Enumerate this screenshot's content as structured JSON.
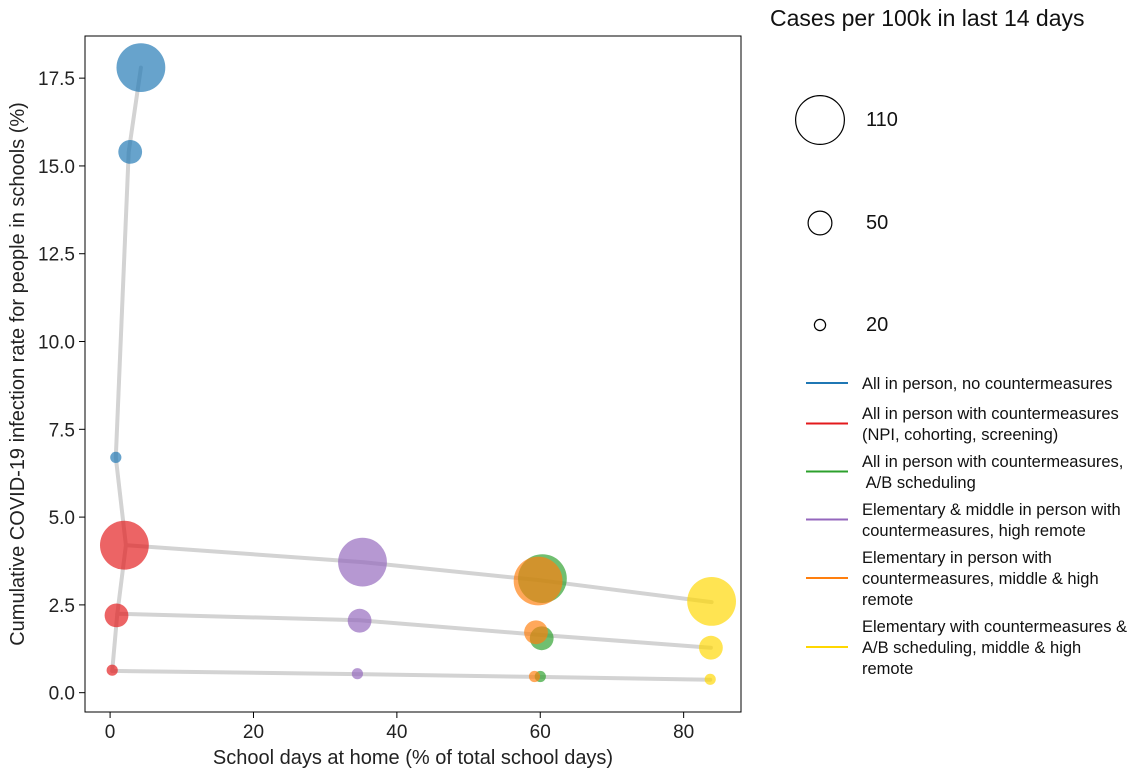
{
  "chart_data": {
    "type": "scatter",
    "xlabel": "School days at home (% of total school days)",
    "ylabel": "Cumulative COVID-19 infection rate for people in schools (%)",
    "xlim": [
      -3.5,
      88
    ],
    "ylim": [
      -0.55,
      18.7
    ],
    "xticks": [
      0,
      20,
      40,
      60,
      80
    ],
    "yticks": [
      0.0,
      2.5,
      5.0,
      7.5,
      10.0,
      12.5,
      15.0,
      17.5
    ],
    "ytick_labels": [
      "0.0",
      "2.5",
      "5.0",
      "7.5",
      "10.0",
      "12.5",
      "15.0",
      "17.5"
    ],
    "grid": false,
    "size_legend": {
      "title": "Cases per 100k in last 14 days",
      "entries": [
        {
          "label": "110",
          "value": 110
        },
        {
          "label": "50",
          "value": 50
        },
        {
          "label": "20",
          "value": 20
        }
      ]
    },
    "trend_lines": [
      {
        "case_rate": 20,
        "points": [
          [
            0.3,
            0.62
          ],
          [
            34.5,
            0.53
          ],
          [
            59.5,
            0.45
          ],
          [
            83.7,
            0.37
          ]
        ]
      },
      {
        "case_rate": 50,
        "points": [
          [
            0.3,
            0.62
          ],
          [
            1.0,
            2.25
          ],
          [
            34.8,
            2.06
          ],
          [
            59.7,
            1.65
          ],
          [
            83.8,
            1.28
          ]
        ]
      },
      {
        "case_rate": 110,
        "points": [
          [
            1.0,
            2.25
          ],
          [
            2.2,
            4.2
          ],
          [
            35.2,
            3.72
          ],
          [
            60.0,
            3.2
          ],
          [
            83.9,
            2.58
          ]
        ]
      },
      {
        "series": "All in person, no countermeasures",
        "points": [
          [
            2.2,
            4.2
          ],
          [
            0.8,
            6.7
          ],
          [
            2.6,
            15.4
          ],
          [
            4.3,
            17.8
          ]
        ]
      }
    ],
    "series": [
      {
        "name": "All in person, no countermeasures",
        "color": "#1f77b4",
        "points": [
          {
            "x": 0.8,
            "y": 6.7,
            "cases": 20
          },
          {
            "x": 2.8,
            "y": 15.4,
            "cases": 50
          },
          {
            "x": 4.3,
            "y": 17.8,
            "cases": 110
          }
        ]
      },
      {
        "name": "All in person with countermeasures (NPI, cohorting, screening)",
        "color": "#e31a1c",
        "points": [
          {
            "x": 0.3,
            "y": 0.64,
            "cases": 20
          },
          {
            "x": 0.9,
            "y": 2.2,
            "cases": 50
          },
          {
            "x": 2.0,
            "y": 4.2,
            "cases": 110
          }
        ]
      },
      {
        "name": "All in person with countermeasures, A/B scheduling",
        "color": "#2ca02c",
        "points": [
          {
            "x": 60.0,
            "y": 0.46,
            "cases": 20
          },
          {
            "x": 60.2,
            "y": 1.55,
            "cases": 50
          },
          {
            "x": 60.3,
            "y": 3.25,
            "cases": 110
          }
        ]
      },
      {
        "name": "Elementary & middle in person with countermeasures, high remote",
        "color": "#9467bd",
        "points": [
          {
            "x": 34.5,
            "y": 0.54,
            "cases": 20
          },
          {
            "x": 34.8,
            "y": 2.05,
            "cases": 50
          },
          {
            "x": 35.2,
            "y": 3.72,
            "cases": 110
          }
        ]
      },
      {
        "name": "Elementary in person with countermeasures, middle & high remote",
        "color": "#ff7f0e",
        "points": [
          {
            "x": 59.2,
            "y": 0.46,
            "cases": 20
          },
          {
            "x": 59.4,
            "y": 1.72,
            "cases": 50
          },
          {
            "x": 59.7,
            "y": 3.18,
            "cases": 110
          }
        ]
      },
      {
        "name": "Elementary with countermeasures & A/B scheduling, middle & high remote",
        "color": "#ffd700",
        "points": [
          {
            "x": 83.7,
            "y": 0.38,
            "cases": 20
          },
          {
            "x": 83.8,
            "y": 1.28,
            "cases": 50
          },
          {
            "x": 83.9,
            "y": 2.6,
            "cases": 110
          }
        ]
      }
    ],
    "legend": {
      "placement": "right",
      "entries": [
        {
          "lines": [
            "All in person, no countermeasures"
          ],
          "color": "#1f77b4"
        },
        {
          "lines": [
            "All in person with countermeasures",
            "(NPI, cohorting, screening)"
          ],
          "color": "#e31a1c"
        },
        {
          "lines": [
            "All in person with countermeasures,",
            " A/B scheduling"
          ],
          "color": "#2ca02c"
        },
        {
          "lines": [
            "Elementary & middle in person with",
            "countermeasures, high remote"
          ],
          "color": "#9467bd"
        },
        {
          "lines": [
            "Elementary in person with",
            "countermeasures, middle & high",
            "remote"
          ],
          "color": "#ff7f0e"
        },
        {
          "lines": [
            "Elementary with countermeasures &",
            "A/B scheduling, middle & high",
            "remote"
          ],
          "color": "#ffd700"
        }
      ]
    }
  }
}
